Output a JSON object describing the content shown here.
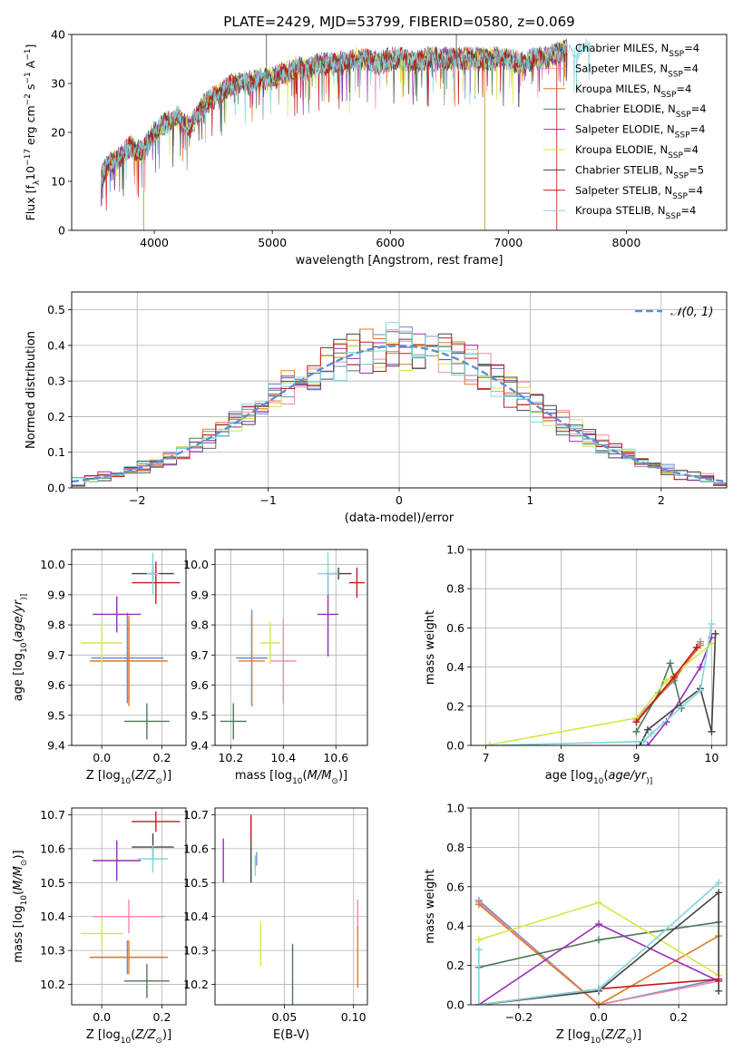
{
  "figure": {
    "title": "PLATE=2429, MJD=53799, FIBERID=0580, z=0.069"
  },
  "series": [
    {
      "name": "Chabrier MILES, N$_{SSP}$=4",
      "label_main": "Chabrier MILES, N",
      "label_sub": "SSP",
      "label_tail": "=4",
      "color": "#6b8ec9"
    },
    {
      "name": "Salpeter MILES, N$_{SSP}$=4",
      "label_main": "Salpeter MILES, N",
      "label_sub": "SSP",
      "label_tail": "=4",
      "color": "#f08aae"
    },
    {
      "name": "Kroupa MILES, N$_{SSP}$=4",
      "label_main": "Kroupa MILES, N",
      "label_sub": "SSP",
      "label_tail": "=4",
      "color": "#e07a2a"
    },
    {
      "name": "Chabrier ELODIE, N$_{SSP}$=4",
      "label_main": "Chabrier ELODIE, N",
      "label_sub": "SSP",
      "label_tail": "=4",
      "color": "#4c7a56"
    },
    {
      "name": "Salpeter ELODIE, N$_{SSP}$=4",
      "label_main": "Salpeter ELODIE, N",
      "label_sub": "SSP",
      "label_tail": "=4",
      "color": "#9a2bb5"
    },
    {
      "name": "Kroupa ELODIE, N$_{SSP}$=4",
      "label_main": "Kroupa ELODIE, N",
      "label_sub": "SSP",
      "label_tail": "=4",
      "color": "#d4e845"
    },
    {
      "name": "Chabrier STELIB, N$_{SSP}$=5",
      "label_main": "Chabrier STELIB, N",
      "label_sub": "SSP",
      "label_tail": "=5",
      "color": "#444444"
    },
    {
      "name": "Salpeter STELIB, N$_{SSP}$=4",
      "label_main": "Salpeter STELIB, N",
      "label_sub": "SSP",
      "label_tail": "=4",
      "color": "#c21a1a"
    },
    {
      "name": "Kroupa STELIB, N$_{SSP}$=4",
      "label_main": "Kroupa STELIB, N",
      "label_sub": "SSP",
      "label_tail": "=4",
      "color": "#7fd6dc"
    }
  ],
  "chart_data": [
    {
      "id": "spectrum",
      "type": "line",
      "xlabel": "wavelength [Angstrom, rest frame]",
      "ylabel": "Flux [f$_\\lambda$10$^{-17}$ erg cm$^{-2}$ s$^{-1}$ A$^{-1}$]",
      "ylabel_parts": [
        "Flux [f",
        "λ",
        "10",
        "−17",
        " erg cm",
        "−2",
        " s",
        "−1",
        " A",
        "−1",
        "]"
      ],
      "xlim": [
        3300,
        8850
      ],
      "ylim": [
        0,
        40
      ],
      "xticks": [
        4000,
        5000,
        6000,
        7000,
        8000
      ],
      "yticks": [
        0,
        10,
        20,
        30,
        40
      ],
      "grid": false,
      "legend_position": "upper-right",
      "x": [
        3550,
        3600,
        3700,
        3800,
        3900,
        4000,
        4100,
        4200,
        4300,
        4400,
        4500,
        4600,
        4700,
        4800,
        4900,
        5000,
        5100,
        5200,
        5300,
        5400,
        5500,
        5600,
        5700,
        5800,
        5900,
        6000,
        6100,
        6200,
        6300,
        6400,
        6500,
        6600,
        6700,
        6800,
        6900,
        7000,
        7100,
        7200,
        7300,
        7400,
        7500
      ],
      "y": [
        11,
        13,
        15,
        17,
        16,
        20,
        22,
        23,
        21,
        25,
        27,
        29,
        30,
        30,
        31,
        31,
        32,
        33,
        33,
        34,
        34,
        34,
        35,
        35,
        34,
        35,
        35,
        34,
        35,
        35,
        35,
        35,
        35,
        35,
        35,
        35,
        34,
        35,
        35,
        36,
        37
      ],
      "spikes": [
        {
          "x": 3910,
          "y": 0
        },
        {
          "x": 6800,
          "y": 0
        },
        {
          "x": 7410,
          "y": 0
        },
        {
          "x": 4950,
          "y": 40
        },
        {
          "x": 6560,
          "y": 40
        }
      ]
    },
    {
      "id": "residuals",
      "type": "histogram",
      "xlabel": "(data-model)/error",
      "ylabel": "Normed distribution",
      "xlim": [
        -2.5,
        2.5
      ],
      "ylim": [
        0,
        0.55
      ],
      "xticks": [
        -2,
        -1,
        0,
        1,
        2
      ],
      "xtick_labels": [
        "−2",
        "−1",
        "0",
        "1",
        "2"
      ],
      "yticks": [
        0.0,
        0.1,
        0.2,
        0.3,
        0.4,
        0.5
      ],
      "ytick_labels": [
        "0.0",
        "0.1",
        "0.2",
        "0.3",
        "0.4",
        "0.5"
      ],
      "grid": true,
      "legend_position": "upper-right",
      "reference_curve": {
        "name": "$\\mathcal{N}(0, 1)$",
        "label": "𝒩(0, 1)",
        "mu": 0,
        "sigma": 1,
        "color": "#5b8fd9"
      },
      "bin_width": 0.1,
      "bin_start": -2.5,
      "bin_count": 50
    },
    {
      "id": "age-vs-Z",
      "type": "errorbar",
      "xlabel": "Z [log$_{10}$(Z/Z$_\\odot$)]",
      "xlabel_parts": [
        "Z [log",
        "10",
        "(",
        "Z/Z",
        "⊙",
        ")]"
      ],
      "ylabel": "age  [log$_{10}$(age/yr)]",
      "ylabel_parts": [
        "age  [log",
        "10",
        "(",
        "age/yr",
        ")]"
      ],
      "xlim": [
        -0.1,
        0.28
      ],
      "ylim": [
        9.4,
        10.05
      ],
      "xticks": [
        0.0,
        0.2
      ],
      "xtick_labels": [
        "0.0",
        "0.2"
      ],
      "yticks": [
        9.4,
        9.5,
        9.6,
        9.7,
        9.8,
        9.9,
        10.0
      ],
      "ytick_labels": [
        "9.4",
        "9.5",
        "9.6",
        "9.7",
        "9.8",
        "9.9",
        "10.0"
      ],
      "grid": true,
      "points": [
        {
          "series": 0,
          "x": 0.085,
          "y": 9.69,
          "xerr": 0.12,
          "yerr": 0.15
        },
        {
          "series": 1,
          "x": 0.09,
          "y": 9.68,
          "xerr": 0.12,
          "yerr": 0.13
        },
        {
          "series": 2,
          "x": 0.09,
          "y": 9.68,
          "xerr": 0.13,
          "yerr": 0.15
        },
        {
          "series": 3,
          "x": 0.15,
          "y": 9.48,
          "xerr": 0.075,
          "yerr": 0.06
        },
        {
          "series": 4,
          "x": 0.05,
          "y": 9.835,
          "xerr": 0.08,
          "yerr": 0.06
        },
        {
          "series": 5,
          "x": 0.0,
          "y": 9.74,
          "xerr": 0.07,
          "yerr": 0.07
        },
        {
          "series": 6,
          "x": 0.17,
          "y": 9.97,
          "xerr": 0.07,
          "yerr": 0.03
        },
        {
          "series": 7,
          "x": 0.18,
          "y": 9.94,
          "xerr": 0.08,
          "yerr": 0.07
        },
        {
          "series": 8,
          "x": 0.17,
          "y": 9.97,
          "xerr": 0.02,
          "yerr": 0.07
        }
      ]
    },
    {
      "id": "age-vs-mass",
      "type": "errorbar",
      "xlabel": "mass [log$_{10}$(M/M$_\\odot$)]",
      "xlabel_parts": [
        "mass [log",
        "10",
        "(",
        "M/M",
        "⊙",
        ")]"
      ],
      "ylabel": "",
      "xlim": [
        10.14,
        10.72
      ],
      "ylim": [
        9.4,
        10.05
      ],
      "xticks": [
        10.2,
        10.4,
        10.6
      ],
      "xtick_labels": [
        "10.2",
        "10.4",
        "10.6"
      ],
      "yticks": [
        9.4,
        9.5,
        9.6,
        9.7,
        9.8,
        9.9,
        10.0
      ],
      "ytick_labels": [
        "9.4",
        "9.5",
        "9.6",
        "9.7",
        "9.8",
        "9.9",
        "10.0"
      ],
      "grid": true,
      "points": [
        {
          "series": 0,
          "x": 10.28,
          "y": 9.69,
          "xerr": 0.06,
          "yerr": 0.16
        },
        {
          "series": 1,
          "x": 10.4,
          "y": 9.68,
          "xerr": 0.05,
          "yerr": 0.14
        },
        {
          "series": 2,
          "x": 10.28,
          "y": 9.68,
          "xerr": 0.05,
          "yerr": 0.15
        },
        {
          "series": 3,
          "x": 10.21,
          "y": 9.48,
          "xerr": 0.05,
          "yerr": 0.06
        },
        {
          "series": 4,
          "x": 10.57,
          "y": 9.835,
          "xerr": 0.04,
          "yerr": 0.14
        },
        {
          "series": 5,
          "x": 10.35,
          "y": 9.74,
          "xerr": 0.04,
          "yerr": 0.07
        },
        {
          "series": 6,
          "x": 10.61,
          "y": 9.97,
          "xerr": 0.05,
          "yerr": 0.02
        },
        {
          "series": 7,
          "x": 10.68,
          "y": 9.94,
          "xerr": 0.03,
          "yerr": 0.05
        },
        {
          "series": 8,
          "x": 10.57,
          "y": 9.97,
          "xerr": 0.04,
          "yerr": 0.07
        }
      ]
    },
    {
      "id": "massweight-vs-age",
      "type": "line",
      "xlabel": "age  [log$_{10}$(age/yr)]",
      "xlabel_parts": [
        "age  [log",
        "10",
        "(",
        "age/yr",
        ")]"
      ],
      "ylabel": "mass weight",
      "xlim": [
        6.8,
        10.2
      ],
      "ylim": [
        0,
        1.0
      ],
      "xticks": [
        7,
        8,
        9,
        10
      ],
      "xtick_labels": [
        "7",
        "8",
        "9",
        "10"
      ],
      "yticks": [
        0.0,
        0.2,
        0.4,
        0.6,
        0.8,
        1.0
      ],
      "ytick_labels": [
        "0.0",
        "0.2",
        "0.4",
        "0.6",
        "0.8",
        "1.0"
      ],
      "grid": true,
      "lines": [
        {
          "series": 0,
          "x": [
            9.0,
            9.5,
            9.85
          ],
          "y": [
            0.14,
            0.33,
            0.53
          ]
        },
        {
          "series": 1,
          "x": [
            9.0,
            9.5,
            9.85
          ],
          "y": [
            0.13,
            0.34,
            0.52
          ]
        },
        {
          "series": 2,
          "x": [
            9.0,
            9.5,
            9.85
          ],
          "y": [
            0.12,
            0.34,
            0.51
          ]
        },
        {
          "series": 3,
          "x": [
            9.0,
            9.3,
            9.45,
            9.6
          ],
          "y": [
            0.07,
            0.27,
            0.42,
            0.19
          ]
        },
        {
          "series": 4,
          "x": [
            9.15,
            9.4,
            9.85,
            10.0
          ],
          "y": [
            0.0,
            0.12,
            0.4,
            0.55
          ]
        },
        {
          "series": 5,
          "x": [
            7.0,
            9.0,
            9.4,
            10.0
          ],
          "y": [
            0.0,
            0.14,
            0.33,
            0.52
          ]
        },
        {
          "series": 6,
          "x": [
            9.05,
            9.15,
            9.85,
            10.0,
            10.05
          ],
          "y": [
            0.0,
            0.08,
            0.29,
            0.07,
            0.57
          ]
        },
        {
          "series": 7,
          "x": [
            9.0,
            9.5,
            9.8
          ],
          "y": [
            0.12,
            0.35,
            0.5
          ]
        },
        {
          "series": 8,
          "x": [
            7.05,
            9.1,
            9.2,
            9.85,
            10.0
          ],
          "y": [
            0.0,
            0.02,
            0.06,
            0.28,
            0.62
          ]
        }
      ]
    },
    {
      "id": "mass-vs-Z",
      "type": "errorbar",
      "xlabel": "Z [log$_{10}$(Z/Z$_\\odot$)]",
      "xlabel_parts": [
        "Z [log",
        "10",
        "(",
        "Z/Z",
        "⊙",
        ")]"
      ],
      "ylabel": "mass [log$_{10}$(M/M$_\\odot$)]",
      "ylabel_parts": [
        "mass [log",
        "10",
        "(",
        "M/M",
        "⊙",
        ")]"
      ],
      "xlim": [
        -0.1,
        0.28
      ],
      "ylim": [
        10.14,
        10.72
      ],
      "xticks": [
        0.0,
        0.2
      ],
      "xtick_labels": [
        "0.0",
        "0.2"
      ],
      "yticks": [
        10.2,
        10.3,
        10.4,
        10.5,
        10.6,
        10.7
      ],
      "ytick_labels": [
        "10.2",
        "10.3",
        "10.4",
        "10.5",
        "10.6",
        "10.7"
      ],
      "grid": true,
      "points": [
        {
          "series": 0,
          "x": 0.085,
          "y": 10.28,
          "xerr": 0.12,
          "yerr": 0.05
        },
        {
          "series": 1,
          "x": 0.09,
          "y": 10.4,
          "xerr": 0.12,
          "yerr": 0.05
        },
        {
          "series": 2,
          "x": 0.09,
          "y": 10.28,
          "xerr": 0.13,
          "yerr": 0.05
        },
        {
          "series": 3,
          "x": 0.15,
          "y": 10.21,
          "xerr": 0.075,
          "yerr": 0.05
        },
        {
          "series": 4,
          "x": 0.05,
          "y": 10.565,
          "xerr": 0.08,
          "yerr": 0.06
        },
        {
          "series": 5,
          "x": 0.0,
          "y": 10.35,
          "xerr": 0.07,
          "yerr": 0.04
        },
        {
          "series": 6,
          "x": 0.17,
          "y": 10.605,
          "xerr": 0.07,
          "yerr": 0.04
        },
        {
          "series": 7,
          "x": 0.18,
          "y": 10.68,
          "xerr": 0.08,
          "yerr": 0.03
        },
        {
          "series": 8,
          "x": 0.17,
          "y": 10.57,
          "xerr": 0.05,
          "yerr": 0.04
        }
      ]
    },
    {
      "id": "mass-vs-EBV",
      "type": "errorbar",
      "xlabel": "E(B-V)",
      "ylabel": "",
      "xlim": [
        0.0,
        0.11
      ],
      "ylim": [
        10.14,
        10.72
      ],
      "xticks": [
        0.05,
        0.1
      ],
      "xtick_labels": [
        "0.05",
        "0.10"
      ],
      "yticks": [
        10.2,
        10.3,
        10.4,
        10.5,
        10.6,
        10.7
      ],
      "ytick_labels": [
        "10.2",
        "10.3",
        "10.4",
        "10.5",
        "10.6",
        "10.7"
      ],
      "grid": true,
      "points": [
        {
          "series": 0,
          "x": 0.03,
          "y": 10.57,
          "xerr": 0,
          "yerr": 0.02
        },
        {
          "series": 1,
          "x": 0.103,
          "y": 10.4,
          "xerr": 0,
          "yerr": 0.05
        },
        {
          "series": 2,
          "x": 0.103,
          "y": 10.28,
          "xerr": 0,
          "yerr": 0.09
        },
        {
          "series": 3,
          "x": 0.056,
          "y": 10.21,
          "xerr": 0,
          "yerr": 0.11
        },
        {
          "series": 4,
          "x": 0.006,
          "y": 10.565,
          "xerr": 0,
          "yerr": 0.065
        },
        {
          "series": 5,
          "x": 0.033,
          "y": 10.32,
          "xerr": 0,
          "yerr": 0.065
        },
        {
          "series": 6,
          "x": 0.026,
          "y": 10.56,
          "xerr": 0,
          "yerr": 0.06
        },
        {
          "series": 7,
          "x": 0.026,
          "y": 10.66,
          "xerr": 0,
          "yerr": 0.04
        },
        {
          "series": 8,
          "x": 0.029,
          "y": 10.55,
          "xerr": 0,
          "yerr": 0.03
        }
      ]
    },
    {
      "id": "massweight-vs-Z",
      "type": "line",
      "xlabel": "Z [log$_{10}$(Z/Z$_\\odot$)]",
      "xlabel_parts": [
        "Z [log",
        "10",
        "(",
        "Z/Z",
        "⊙",
        ")]"
      ],
      "ylabel": "mass weight",
      "xlim": [
        -0.32,
        0.32
      ],
      "ylim": [
        0,
        1.0
      ],
      "xticks": [
        -0.2,
        0.0,
        0.2
      ],
      "xtick_labels": [
        "−0.2",
        "0.0",
        "0.2"
      ],
      "yticks": [
        0.0,
        0.2,
        0.4,
        0.6,
        0.8,
        1.0
      ],
      "ytick_labels": [
        "0.0",
        "0.2",
        "0.4",
        "0.6",
        "0.8",
        "1.0"
      ],
      "grid": true,
      "lines": [
        {
          "series": 0,
          "x": [
            -0.3,
            0.0,
            0.3
          ],
          "y": [
            0.53,
            0.0,
            0.13
          ]
        },
        {
          "series": 1,
          "x": [
            -0.3,
            0.0,
            0.3
          ],
          "y": [
            0.52,
            0.0,
            0.12
          ]
        },
        {
          "series": 2,
          "x": [
            -0.3,
            0.0,
            0.3
          ],
          "y": [
            0.51,
            0.0,
            0.35
          ]
        },
        {
          "series": 3,
          "x": [
            -0.3,
            0.0,
            0.3
          ],
          "y": [
            0.19,
            0.33,
            0.42
          ]
        },
        {
          "series": 4,
          "x": [
            -0.3,
            0.0,
            0.3
          ],
          "y": [
            0.0,
            0.41,
            0.12
          ]
        },
        {
          "series": 5,
          "x": [
            -0.3,
            0.0,
            0.3
          ],
          "y": [
            0.33,
            0.52,
            0.15
          ]
        },
        {
          "series": 6,
          "x": [
            -0.3,
            0.0,
            0.3,
            0.3
          ],
          "y": [
            0.0,
            0.07,
            0.57,
            0.07
          ]
        },
        {
          "series": 7,
          "x": [
            -0.3,
            0.0,
            0.3
          ],
          "y": [
            0.0,
            0.08,
            0.13
          ]
        },
        {
          "series": 8,
          "x": [
            -0.3,
            -0.3,
            0.0,
            0.3
          ],
          "y": [
            0.28,
            0.0,
            0.08,
            0.62
          ]
        }
      ]
    }
  ]
}
